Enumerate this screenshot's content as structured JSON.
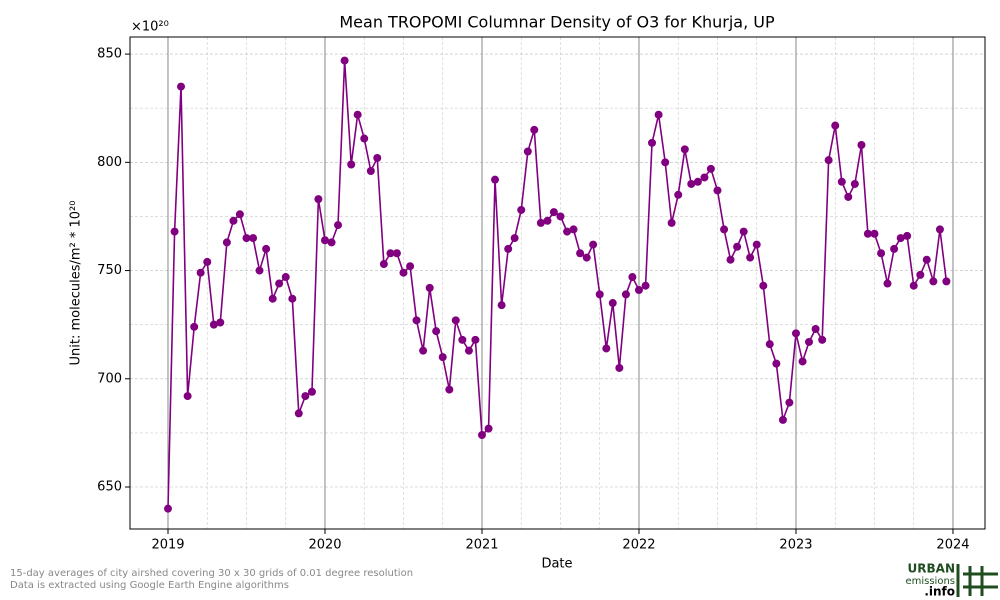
{
  "chart_data": {
    "type": "line",
    "title": "Mean TROPOMI Columnar Density of O3 for Khurja, UP",
    "xlabel": "Date",
    "ylabel": "Unit: molecules/m² * 10²⁰",
    "y_offset_label": "×10²⁰",
    "xlim": [
      2018.758,
      2024.204
    ],
    "ylim": [
      630.6,
      857.9
    ],
    "xticks": [
      2019,
      2020,
      2021,
      2022,
      2023,
      2024
    ],
    "yticks": [
      650,
      700,
      750,
      800,
      850
    ],
    "grid": true,
    "series": [
      {
        "name": "O3",
        "color": "#800080",
        "x": [
          2019,
          2019.042,
          2019.083,
          2019.125,
          2019.167,
          2019.208,
          2019.25,
          2019.292,
          2019.333,
          2019.375,
          2019.417,
          2019.458,
          2019.5,
          2019.542,
          2019.583,
          2019.625,
          2019.667,
          2019.708,
          2019.75,
          2019.792,
          2019.833,
          2019.875,
          2019.917,
          2019.958,
          2020,
          2020.042,
          2020.083,
          2020.125,
          2020.167,
          2020.208,
          2020.25,
          2020.292,
          2020.333,
          2020.375,
          2020.417,
          2020.458,
          2020.5,
          2020.542,
          2020.583,
          2020.625,
          2020.667,
          2020.708,
          2020.75,
          2020.792,
          2020.833,
          2020.875,
          2020.917,
          2020.958,
          2021,
          2021.042,
          2021.083,
          2021.125,
          2021.167,
          2021.208,
          2021.25,
          2021.292,
          2021.333,
          2021.375,
          2021.417,
          2021.458,
          2021.5,
          2021.542,
          2021.583,
          2021.625,
          2021.667,
          2021.708,
          2021.75,
          2021.792,
          2021.833,
          2021.875,
          2021.917,
          2021.958,
          2022,
          2022.042,
          2022.083,
          2022.125,
          2022.167,
          2022.208,
          2022.25,
          2022.292,
          2022.333,
          2022.375,
          2022.417,
          2022.458,
          2022.5,
          2022.542,
          2022.583,
          2022.625,
          2022.667,
          2022.708,
          2022.75,
          2022.792,
          2022.833,
          2022.875,
          2022.917,
          2022.958,
          2023,
          2023.042,
          2023.083,
          2023.125,
          2023.167,
          2023.208,
          2023.25,
          2023.292,
          2023.333,
          2023.375,
          2023.417,
          2023.458,
          2023.5,
          2023.542,
          2023.583,
          2023.625,
          2023.667,
          2023.708,
          2023.75,
          2023.792,
          2023.833,
          2023.875,
          2023.917,
          2023.958
        ],
        "values": [
          640,
          768,
          835,
          692,
          724,
          749,
          754,
          725,
          726,
          763,
          773,
          776,
          765,
          765,
          750,
          760,
          737,
          744,
          747,
          737,
          684,
          692,
          694,
          783,
          764,
          763,
          771,
          847,
          799,
          822,
          811,
          796,
          802,
          753,
          758,
          758,
          749,
          752,
          727,
          713,
          742,
          722,
          710,
          695,
          727,
          718,
          713,
          718,
          674,
          677,
          792,
          734,
          760,
          765,
          778,
          805,
          815,
          772,
          773,
          777,
          775,
          768,
          769,
          758,
          756,
          762,
          739,
          714,
          735,
          705,
          739,
          747,
          741,
          743,
          809,
          822,
          800,
          772,
          785,
          806,
          790,
          791,
          793,
          797,
          787,
          769,
          755,
          761,
          768,
          756,
          762,
          743,
          716,
          707,
          681,
          689,
          721,
          708,
          717,
          723,
          718,
          801,
          817,
          791,
          784,
          790,
          808,
          767,
          767,
          758,
          744,
          760,
          765,
          766,
          743,
          748,
          755,
          745,
          769,
          745
        ]
      }
    ]
  },
  "footer": [
    "15-day averages of city airshed covering 30 x 30 grids of 0.01 degree resolution",
    "Data is extracted using Google Earth Engine algorithms"
  ],
  "logo": {
    "line1": "URBAN",
    "line2": "emissions",
    "line3": ".info"
  }
}
